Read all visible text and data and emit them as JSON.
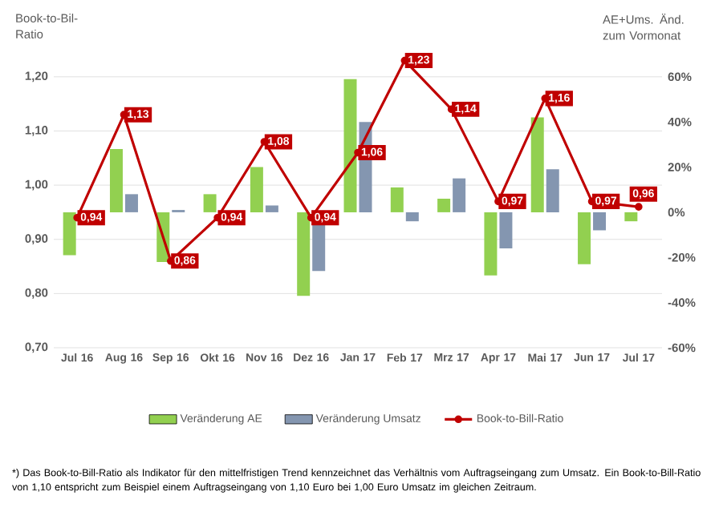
{
  "chart_data": {
    "type": "bar",
    "ylabel": "Book-to-Bil-Ratio",
    "y2label": "AE+Ums. Änd. zum Vormonat",
    "annotations": [
      "*) Das Book-to-Bill-Ratio als Indikator für den mittelfristigen Trend kennzeichnet das Verhältnis vom Auftragseingang zum Umsatz. Ein Book-to-Bill-Ratio von 1,10 entspricht zum Beispiel einem Auftragseingang von 1,10 Euro bei 1,00 Euro Umsatz im gleichen Zeitraum."
    ],
    "categories": [
      "Jul 16",
      "Aug 16",
      "Sep 16",
      "Okt 16",
      "Nov 16",
      "Dez 16",
      "Jan 17",
      "Feb 17",
      "Mrz 17",
      "Apr 17",
      "Mai 17",
      "Jun 17",
      "Jul 17"
    ],
    "series": [
      {
        "name": "Veränderung AE",
        "color": "#92d050",
        "axis": "y2",
        "values": [
          -19,
          28,
          -22,
          8,
          20,
          -37,
          59,
          11,
          6,
          -28,
          42,
          -23,
          -4
        ]
      },
      {
        "name": "Veränderung Umsatz",
        "color": "#8496b0",
        "axis": "y2",
        "values": [
          0,
          8,
          1,
          0,
          3,
          -26,
          40,
          -4,
          15,
          -16,
          19,
          -8,
          0
        ]
      },
      {
        "name": "Book-to-Bill-Ratio",
        "color": "#c00000",
        "type": "line",
        "marker": "circle",
        "line_style": "solid",
        "values": [
          0.94,
          1.13,
          0.86,
          0.94,
          1.08,
          0.94,
          1.06,
          1.23,
          1.14,
          0.97,
          1.16,
          0.97,
          0.96
        ],
        "value_labels": [
          "0,94",
          "1,13",
          "0,86",
          "0,94",
          "1,08",
          "0,94",
          "1,06",
          "1,23",
          "1,14",
          "0,97",
          "1,16",
          "0,97",
          "0,96"
        ]
      }
    ],
    "ylim": [
      0.7,
      1.25
    ],
    "yticks": [
      {
        "value": 0.7,
        "label": "0,70"
      },
      {
        "value": 0.8,
        "label": "0,80"
      },
      {
        "value": 0.9,
        "label": "0,90"
      },
      {
        "value": 1.0,
        "label": "1,00"
      },
      {
        "value": 1.1,
        "label": "1,10"
      },
      {
        "value": 1.2,
        "label": "1,20"
      }
    ],
    "y2lim": [
      -60,
      72
    ],
    "y2ticks": [
      {
        "value": -60,
        "label": "-60%"
      },
      {
        "value": -40,
        "label": "-40%"
      },
      {
        "value": -20,
        "label": "-20%"
      },
      {
        "value": 0,
        "label": "0%"
      },
      {
        "value": 20,
        "label": "20%"
      },
      {
        "value": 40,
        "label": "40%"
      },
      {
        "value": 60,
        "label": "60%"
      }
    ],
    "grid": "y",
    "legend": "bottom"
  }
}
